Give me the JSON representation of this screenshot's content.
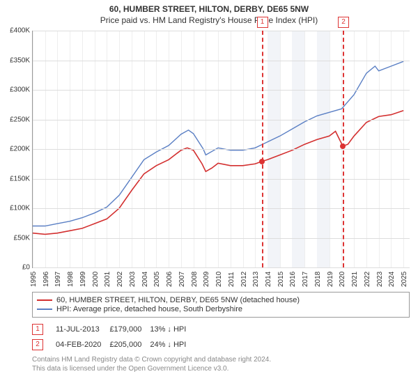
{
  "title": "60, HUMBER STREET, HILTON, DERBY, DE65 5NW",
  "subtitle": "Price paid vs. HM Land Registry's House Price Index (HPI)",
  "chart": {
    "type": "line",
    "x_years": [
      1995,
      1996,
      1997,
      1998,
      1999,
      2000,
      2001,
      2002,
      2003,
      2004,
      2005,
      2006,
      2007,
      2008,
      2009,
      2010,
      2011,
      2012,
      2013,
      2014,
      2015,
      2016,
      2017,
      2018,
      2019,
      2020,
      2021,
      2022,
      2023,
      2024,
      2025
    ],
    "xlim": [
      1995,
      2025.5
    ],
    "ylim": [
      0,
      400000
    ],
    "ytick_step": 50000,
    "ylab_prefix": "£",
    "ylab_suffix": "K",
    "grid_color": "#dddddd",
    "axis_color": "#999999",
    "background_color": "#ffffff",
    "band_years": [
      2014,
      2015,
      2016,
      2017,
      2018,
      2019
    ],
    "band_color": "#f2f4f8",
    "series": [
      {
        "name": "price_paid",
        "color": "#d32f2f",
        "width": 1.6,
        "legend": "60, HUMBER STREET, HILTON, DERBY, DE65 5NW (detached house)",
        "points": [
          [
            1995,
            58000
          ],
          [
            1996,
            56000
          ],
          [
            1997,
            58000
          ],
          [
            1998,
            62000
          ],
          [
            1999,
            66000
          ],
          [
            2000,
            74000
          ],
          [
            2001,
            82000
          ],
          [
            2002,
            100000
          ],
          [
            2003,
            130000
          ],
          [
            2004,
            158000
          ],
          [
            2005,
            172000
          ],
          [
            2006,
            182000
          ],
          [
            2007,
            198000
          ],
          [
            2007.5,
            202000
          ],
          [
            2008,
            198000
          ],
          [
            2008.7,
            175000
          ],
          [
            2009,
            162000
          ],
          [
            2009.5,
            168000
          ],
          [
            2010,
            176000
          ],
          [
            2011,
            172000
          ],
          [
            2012,
            172000
          ],
          [
            2013,
            175000
          ],
          [
            2013.52,
            179000
          ],
          [
            2014,
            182000
          ],
          [
            2015,
            190000
          ],
          [
            2016,
            198000
          ],
          [
            2017,
            208000
          ],
          [
            2018,
            216000
          ],
          [
            2019,
            222000
          ],
          [
            2019.5,
            230000
          ],
          [
            2020.09,
            205000
          ],
          [
            2020.5,
            208000
          ],
          [
            2021,
            222000
          ],
          [
            2022,
            245000
          ],
          [
            2023,
            255000
          ],
          [
            2024,
            258000
          ],
          [
            2025,
            265000
          ]
        ]
      },
      {
        "name": "hpi",
        "color": "#5a7fc4",
        "width": 1.4,
        "legend": "HPI: Average price, detached house, South Derbyshire",
        "points": [
          [
            1995,
            70000
          ],
          [
            1996,
            70000
          ],
          [
            1997,
            74000
          ],
          [
            1998,
            78000
          ],
          [
            1999,
            84000
          ],
          [
            2000,
            92000
          ],
          [
            2001,
            102000
          ],
          [
            2002,
            122000
          ],
          [
            2003,
            152000
          ],
          [
            2004,
            182000
          ],
          [
            2005,
            195000
          ],
          [
            2006,
            206000
          ],
          [
            2007,
            225000
          ],
          [
            2007.6,
            232000
          ],
          [
            2008,
            226000
          ],
          [
            2008.8,
            200000
          ],
          [
            2009,
            190000
          ],
          [
            2010,
            202000
          ],
          [
            2011,
            198000
          ],
          [
            2012,
            198000
          ],
          [
            2013,
            202000
          ],
          [
            2014,
            212000
          ],
          [
            2015,
            222000
          ],
          [
            2016,
            234000
          ],
          [
            2017,
            246000
          ],
          [
            2018,
            256000
          ],
          [
            2019,
            262000
          ],
          [
            2020,
            268000
          ],
          [
            2021,
            292000
          ],
          [
            2022,
            328000
          ],
          [
            2022.7,
            340000
          ],
          [
            2023,
            332000
          ],
          [
            2024,
            340000
          ],
          [
            2025,
            348000
          ]
        ]
      }
    ],
    "sales": [
      {
        "n": "1",
        "year": 2013.52,
        "price": 179000,
        "date": "11-JUL-2013",
        "price_label": "£179,000",
        "delta": "13% ↓ HPI"
      },
      {
        "n": "2",
        "year": 2020.09,
        "price": 205000,
        "date": "04-FEB-2020",
        "price_label": "£205,000",
        "delta": "24% ↓ HPI"
      }
    ],
    "marker_box_color": "#d33"
  },
  "footer": {
    "l1": "Contains HM Land Registry data © Crown copyright and database right 2024.",
    "l2": "This data is licensed under the Open Government Licence v3.0."
  }
}
